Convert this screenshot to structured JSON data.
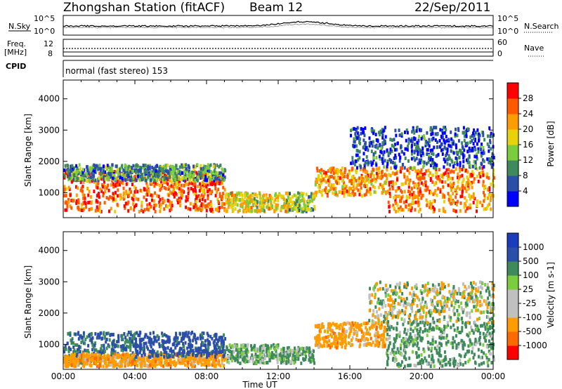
{
  "header": {
    "title": "Zhongshan Station (fitACF)",
    "beam": "Beam 12",
    "date": "22/Sep/2011"
  },
  "top_panels": {
    "nsky_label": "N.Sky",
    "nsky_ticks": [
      "10^5",
      "10^0"
    ],
    "nsearch_label": "N.Search",
    "nsearch_ticks": [
      "10^5",
      "10^0"
    ],
    "freq_label_1": "Freq.",
    "freq_label_2": "[MHz]",
    "freq_ticks": [
      "12",
      "8"
    ],
    "nave_label": "Nave",
    "nave_ticks": [
      "60",
      "0"
    ],
    "cpid_label": "CPID",
    "cpid_text": "normal (fast stereo) 153"
  },
  "colors": {
    "power": [
      "#0000ff",
      "#2b4fa8",
      "#3e8a5c",
      "#7ccd3e",
      "#e8d20a",
      "#ff9c00",
      "#ff5a00",
      "#ff0000"
    ],
    "velocity": [
      "#ff0000",
      "#ff6a00",
      "#ff9c00",
      "#c0c0c0",
      "#c0c0c0",
      "#7ccd3e",
      "#3e8a5c",
      "#2b4fa8",
      "#1c3cc0"
    ]
  },
  "chart_data": [
    {
      "type": "heatmap",
      "name": "power",
      "ylabel": "Slant Range [km]",
      "yticks": [
        "1000",
        "2000",
        "3000",
        "4000"
      ],
      "ylim": [
        200,
        4600
      ],
      "xlim": [
        0,
        24
      ],
      "colorbar_label": "Power [dB]",
      "colorbar_ticks": [
        "4",
        "8",
        "12",
        "16",
        "20",
        "24",
        "28"
      ],
      "colorbar_range": [
        0,
        32
      ],
      "echo_regions": [
        {
          "t": [
            0,
            9
          ],
          "r": [
            400,
            1700
          ],
          "level": 26
        },
        {
          "t": [
            0,
            9
          ],
          "r": [
            1400,
            1900
          ],
          "level": 10
        },
        {
          "t": [
            9,
            12.5
          ],
          "r": [
            400,
            1000
          ],
          "level": 18
        },
        {
          "t": [
            12.5,
            14
          ],
          "r": [
            400,
            1000
          ],
          "level": 14
        },
        {
          "t": [
            14,
            18
          ],
          "r": [
            900,
            1800
          ],
          "level": 22
        },
        {
          "t": [
            18,
            24
          ],
          "r": [
            400,
            1800
          ],
          "level": 24
        },
        {
          "t": [
            16,
            24
          ],
          "r": [
            1800,
            3100
          ],
          "level": 6
        }
      ]
    },
    {
      "type": "heatmap",
      "name": "velocity",
      "ylabel": "Slant Range [km]",
      "yticks": [
        "1000",
        "2000",
        "3000",
        "4000"
      ],
      "ylim": [
        200,
        4600
      ],
      "xlim": [
        0,
        24
      ],
      "xticks": [
        "00:00",
        "04:00",
        "08:00",
        "12:00",
        "16:00",
        "20:00",
        "00:00"
      ],
      "xlabel": "Time UT",
      "colorbar_label": "Velocity [m s-1]",
      "colorbar_ticks": [
        "-1000",
        "-500",
        "-100",
        "-25",
        "25",
        "100",
        "500",
        "1000"
      ],
      "colorbar_range": [
        -1200,
        1200
      ],
      "echo_regions": [
        {
          "t": [
            0,
            4
          ],
          "r": [
            400,
            1400
          ],
          "v": 500
        },
        {
          "t": [
            0,
            9
          ],
          "r": [
            300,
            700
          ],
          "v": -300
        },
        {
          "t": [
            4,
            9
          ],
          "r": [
            600,
            1400
          ],
          "v": 700
        },
        {
          "t": [
            9,
            12
          ],
          "r": [
            400,
            1000
          ],
          "v": 150
        },
        {
          "t": [
            12,
            14
          ],
          "r": [
            400,
            900
          ],
          "v": 200
        },
        {
          "t": [
            14,
            18
          ],
          "r": [
            900,
            1700
          ],
          "v": -300
        },
        {
          "t": [
            18,
            24
          ],
          "r": [
            300,
            1700
          ],
          "v": 200
        },
        {
          "t": [
            17,
            24
          ],
          "r": [
            1700,
            3000
          ],
          "v": 0
        }
      ]
    }
  ]
}
